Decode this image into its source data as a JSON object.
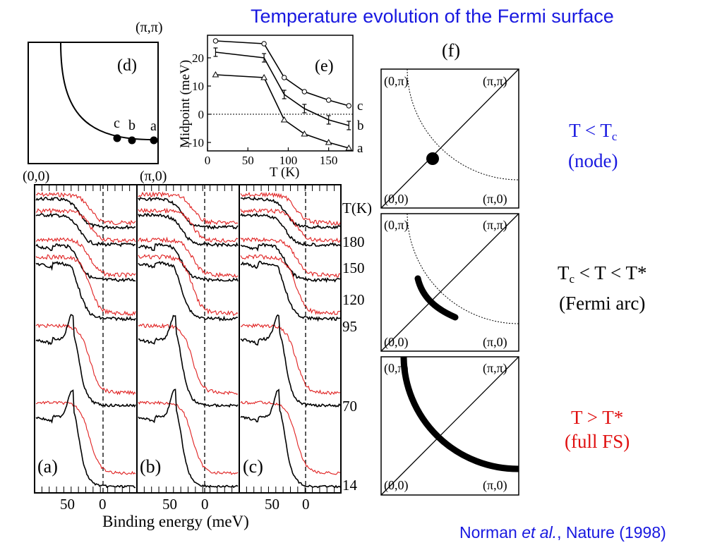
{
  "slide": {
    "title": "Temperature evolution of the Fermi surface",
    "citation": {
      "author": "Norman",
      "etal": "et al.",
      "journal": ", Nature (1998)"
    }
  },
  "panel_d": {
    "label": "(d)",
    "corner_top_right": "(π,π)",
    "corner_bottom_left": "(0,0)",
    "corner_bottom_right": "(π,0)",
    "points": [
      "c",
      "b",
      "a"
    ]
  },
  "panel_e": {
    "label": "(e)",
    "series_labels": [
      "c",
      "b",
      "a"
    ]
  },
  "panel_f": {
    "label": "(f)",
    "corner_labels": {
      "tl": "(0,π)",
      "tr": "(π,π)",
      "bl": "(0,0)",
      "br": "(π,0)"
    },
    "regimes": [
      {
        "line1_main": "T < T",
        "line1_sub": "c",
        "line1_rest": "",
        "line2": "(node)",
        "color": "#1818e0"
      },
      {
        "line1_main": "T",
        "line1_sub": "c",
        "line1_rest": " < T < T*",
        "line2": "(Fermi arc)",
        "color": "#000000"
      },
      {
        "line1_main": "T > T*",
        "line1_sub": "",
        "line1_rest": "",
        "line2": "(full FS)",
        "color": "#e01010"
      }
    ]
  },
  "spectra": {
    "panel_labels": [
      "(a)",
      "(b)",
      "(c)"
    ],
    "temperature_header": "T(K)",
    "temperatures": [
      "180",
      "150",
      "120",
      "95",
      "70",
      "14"
    ],
    "xlabel": "Binding energy (meV)",
    "xticks": [
      "50",
      "0"
    ]
  },
  "chart_data": {
    "type": "line",
    "title": "",
    "xlabel": "T (K)",
    "ylabel": "Midpoint (meV)",
    "xlim": [
      0,
      180
    ],
    "ylim": [
      -13,
      28
    ],
    "xticks": [
      0,
      50,
      100,
      150
    ],
    "yticks": [
      -10,
      0,
      10,
      20
    ],
    "series": [
      {
        "name": "c",
        "x": [
          10,
          70,
          95,
          120,
          150,
          175
        ],
        "y": [
          26,
          25,
          13,
          8,
          5,
          3
        ]
      },
      {
        "name": "b",
        "x": [
          10,
          70,
          95,
          120,
          150,
          175
        ],
        "y": [
          22,
          20,
          7,
          2,
          -2,
          -4
        ]
      },
      {
        "name": "a",
        "x": [
          10,
          70,
          95,
          120,
          150,
          175
        ],
        "y": [
          14,
          13,
          -2,
          -7,
          -10,
          -12
        ]
      }
    ]
  },
  "colors": {
    "title": "#1818e0",
    "node": "#1818e0",
    "full_fs": "#e01010",
    "spectra_red": "#e02020"
  }
}
